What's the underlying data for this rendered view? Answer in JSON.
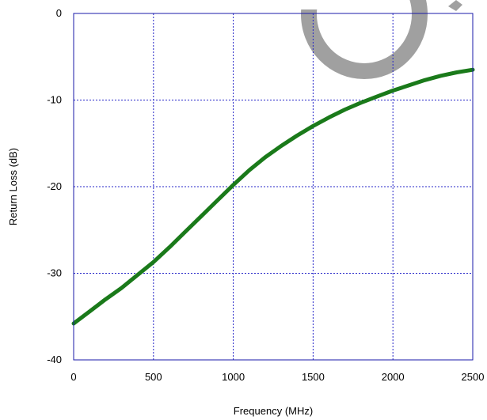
{
  "chart_data": {
    "type": "line",
    "title": "",
    "xlabel": "Frequency (MHz)",
    "ylabel": "Return Loss (dB)",
    "xlim": [
      0,
      2500
    ],
    "ylim": [
      -40,
      0
    ],
    "x_ticks": [
      "0",
      "500",
      "1000",
      "1500",
      "2000",
      "2500"
    ],
    "y_ticks": [
      "0",
      "-10",
      "-20",
      "-30",
      "-40"
    ],
    "grid": true,
    "legend": "none",
    "colors": {
      "series": "#1a7a1a",
      "grid": "#2424c8",
      "frame": "#1a1aa8",
      "decoration": "#a0a0a0"
    },
    "series": [
      {
        "x": [
          0,
          100,
          200,
          300,
          400,
          500,
          600,
          700,
          800,
          900,
          1000,
          1100,
          1200,
          1300,
          1400,
          1500,
          1600,
          1700,
          1800,
          1900,
          2000,
          2100,
          2200,
          2300,
          2400,
          2500
        ],
        "y": [
          -35.8,
          -34.4,
          -33.0,
          -31.7,
          -30.2,
          -28.7,
          -27.0,
          -25.2,
          -23.4,
          -21.6,
          -19.8,
          -18.1,
          -16.6,
          -15.3,
          -14.1,
          -13.0,
          -12.0,
          -11.1,
          -10.3,
          -9.6,
          -8.9,
          -8.3,
          -7.7,
          -7.2,
          -6.8,
          -6.5
        ]
      }
    ]
  }
}
